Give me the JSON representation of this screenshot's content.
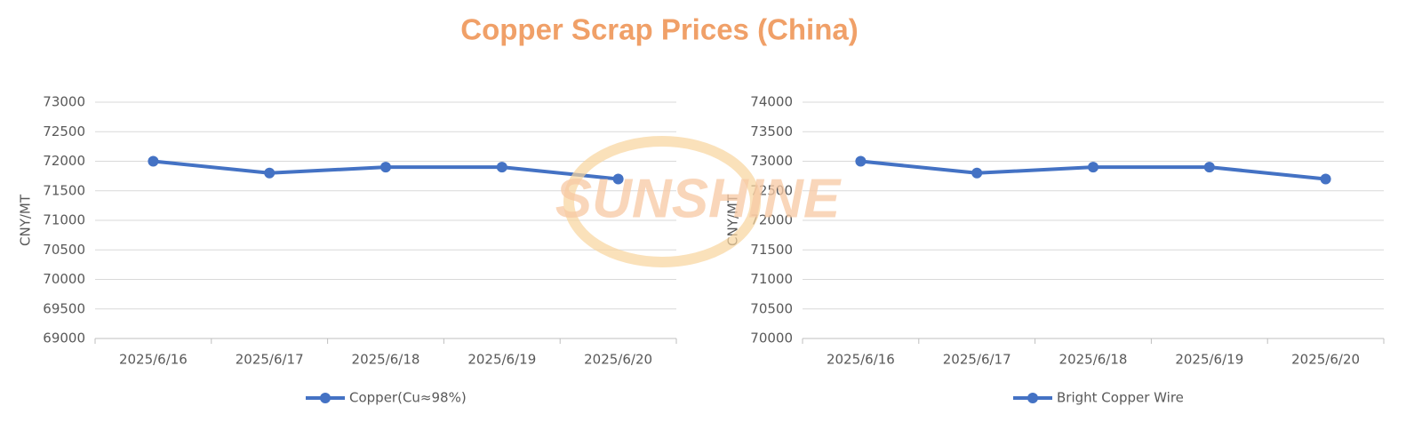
{
  "title": "Copper Scrap Prices (China)",
  "watermark": "SUNSHINE",
  "chart_data": [
    {
      "type": "line",
      "ylabel": "CNY/MT",
      "categories": [
        "2025/6/16",
        "2025/6/17",
        "2025/6/18",
        "2025/6/19",
        "2025/6/20"
      ],
      "series": [
        {
          "name": "Copper(Cu≈98%)",
          "color": "#4472c4",
          "values": [
            72000,
            71800,
            71900,
            71900,
            71700
          ]
        }
      ],
      "ylim": [
        69000,
        73000
      ],
      "yticks": [
        69000,
        69500,
        70000,
        70500,
        71000,
        71500,
        72000,
        72500,
        73000
      ],
      "grid": true,
      "legend": "bottom"
    },
    {
      "type": "line",
      "ylabel": "CNY/MT",
      "categories": [
        "2025/6/16",
        "2025/6/17",
        "2025/6/18",
        "2025/6/19",
        "2025/6/20"
      ],
      "series": [
        {
          "name": "Bright Copper Wire",
          "color": "#4472c4",
          "values": [
            73000,
            72800,
            72900,
            72900,
            72700
          ]
        }
      ],
      "ylim": [
        70000,
        74000
      ],
      "yticks": [
        70000,
        70500,
        71000,
        71500,
        72000,
        72500,
        73000,
        73500,
        74000
      ],
      "grid": true,
      "legend": "bottom"
    }
  ]
}
